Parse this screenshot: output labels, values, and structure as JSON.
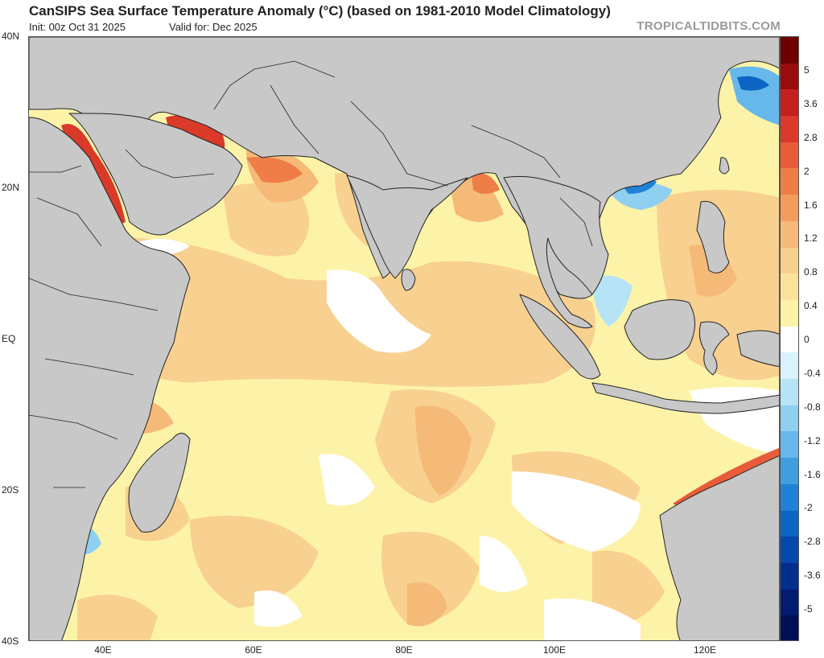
{
  "header": {
    "title": "CanSIPS Sea Surface Temperature Anomaly (°C) (based on 1981-2010 Model Climatology)",
    "init": "Init: 00z Oct 31 2025",
    "valid": "Valid for: Dec 2025",
    "source": "TROPICALTIDBITS.COM"
  },
  "axes": {
    "lat_labels": [
      "40N",
      "20N",
      "EQ",
      "20S",
      "40S"
    ],
    "lon_labels": [
      "40E",
      "60E",
      "80E",
      "100E",
      "120E"
    ]
  },
  "colorbar": {
    "labels": [
      "5",
      "3.6",
      "2.8",
      "2",
      "1.6",
      "1.2",
      "0.8",
      "0.4",
      "0",
      "-0.4",
      "-0.8",
      "-1.2",
      "-1.6",
      "-2",
      "-2.8",
      "-3.6",
      "-5"
    ],
    "colors": [
      "#6e0000",
      "#9a0b0b",
      "#c42020",
      "#da3a2a",
      "#e85c3a",
      "#ef7d48",
      "#f29d5d",
      "#f5ba78",
      "#f8d090",
      "#fbe39c",
      "#fdf3a8",
      "#ffffff",
      "#d9f2fb",
      "#b6e3f6",
      "#8fd0f0",
      "#66b8ea",
      "#3f9ee0",
      "#1f82d6",
      "#0c64c4",
      "#0648ac",
      "#022f8e",
      "#011c70",
      "#001055"
    ]
  },
  "map": {
    "land_color": "#c8c8c8",
    "ocean_base_color": "#fdf3a8",
    "lat_range": [
      -40,
      40
    ],
    "lon_range": [
      30,
      130
    ]
  }
}
